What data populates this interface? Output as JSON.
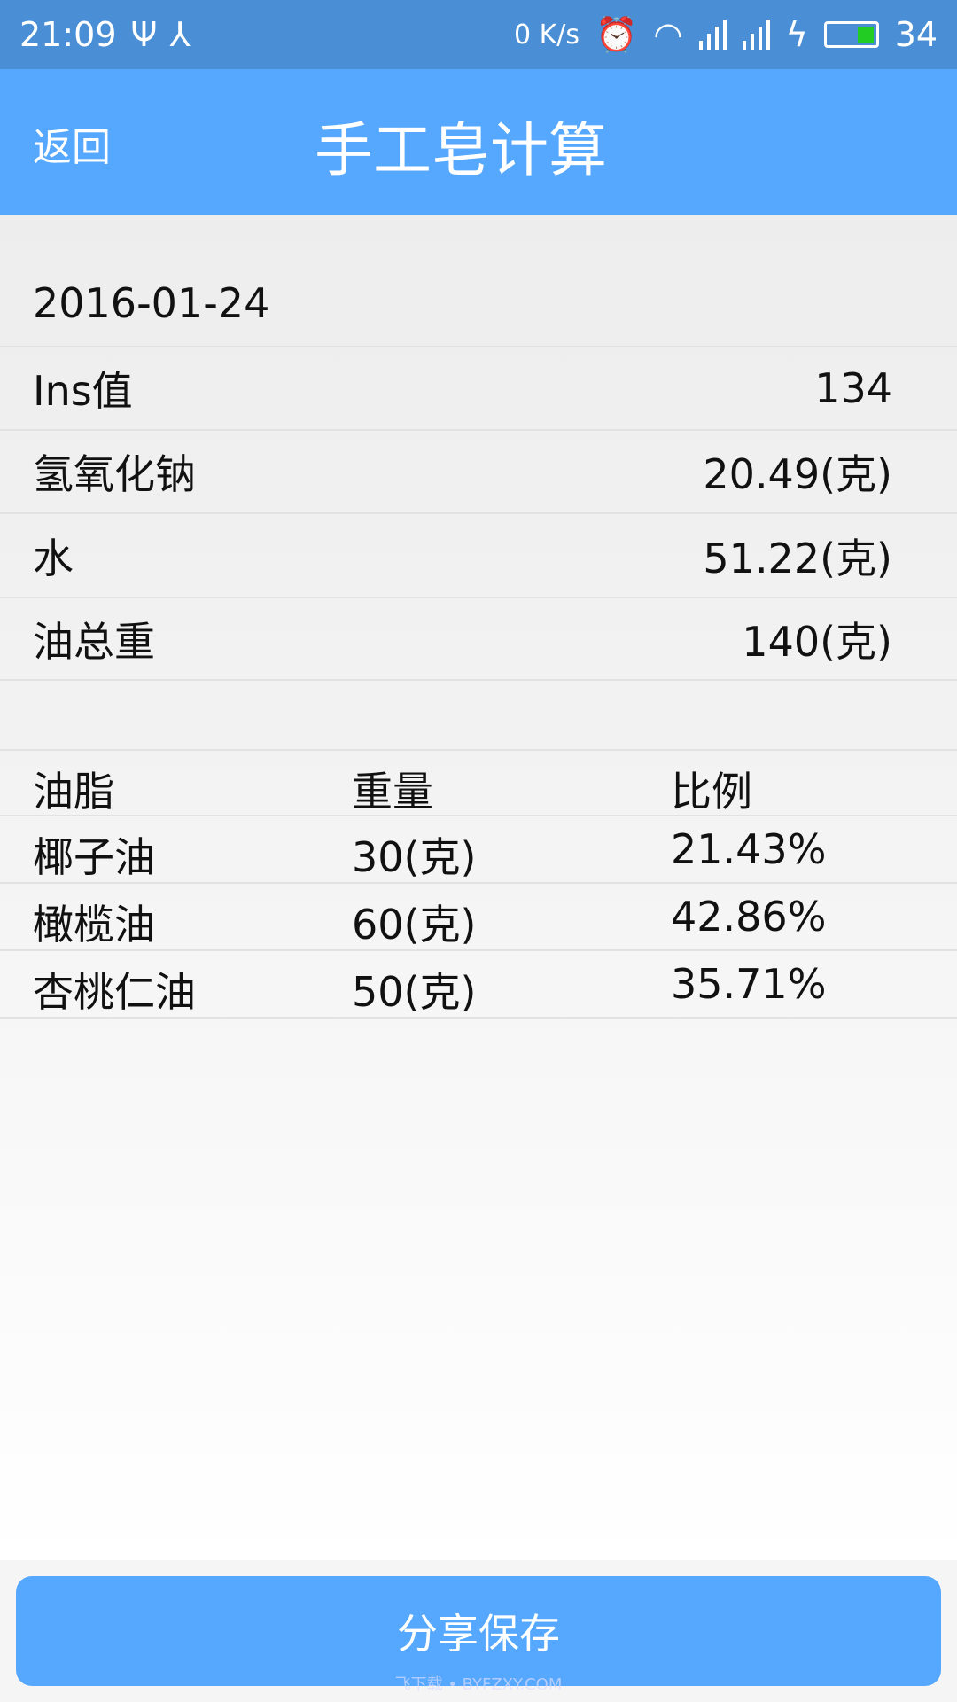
{
  "status_bar": {
    "time": "21:09",
    "net_speed": "0 K/s",
    "battery": "34",
    "icons": [
      "usb-icon",
      "share-icon",
      "alarm-icon",
      "wifi-icon",
      "signal-icon",
      "4g-signal-icon",
      "charging-icon",
      "battery-icon"
    ]
  },
  "header": {
    "back_label": "返回",
    "title": "手工皂计算",
    "color": "#55a8fd"
  },
  "summary": {
    "date": "2016-01-24",
    "rows": [
      {
        "label": "Ins值",
        "value": "134"
      },
      {
        "label": "氢氧化钠",
        "value": "20.49(克)"
      },
      {
        "label": "水",
        "value": "51.22(克)"
      },
      {
        "label": "油总重",
        "value": "140(克)"
      }
    ]
  },
  "oils": {
    "headers": [
      "油脂",
      "重量",
      "比例"
    ],
    "rows": [
      [
        "椰子油",
        "30(克)",
        "21.43%"
      ],
      [
        "橄榄油",
        "60(克)",
        "42.86%"
      ],
      [
        "杏桃仁油",
        "50(克)",
        "35.71%"
      ]
    ]
  },
  "footer": {
    "share_save_label": "分享保存"
  },
  "watermark": "飞下载 • BYFZXY.COM"
}
